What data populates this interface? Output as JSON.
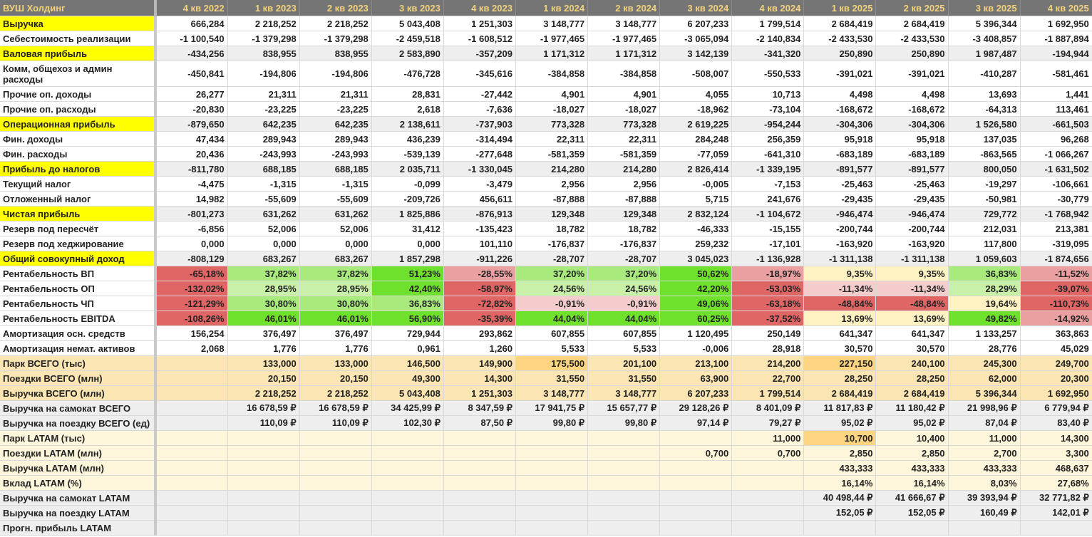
{
  "title": "ВУШ Холдинг",
  "columns": [
    "4 кв 2022",
    "1 кв 2023",
    "2 кв 2023",
    "3 кв 2023",
    "4 кв 2023",
    "1 кв 2024",
    "2 кв 2024",
    "3 кв 2024",
    "4 кв 2024",
    "1 кв 2025",
    "2 кв 2025",
    "3 кв 2025",
    "4 кв 2025"
  ],
  "colors": {
    "header_bg": "#757575",
    "header_text": "#f2d27a",
    "highlight": "#ffff00",
    "green_strong": "#6fe02c",
    "green_mid": "#a8ea7c",
    "green_light": "#c8f0a8",
    "red_strong": "#e06666",
    "red_mid": "#eaa0a0",
    "red_light": "#f4cccc",
    "yellow_light": "#fef2c2",
    "peach": "#fbe5b3",
    "cream": "#fef6db",
    "gray": "#eeeeee"
  },
  "rows": [
    {
      "label": "Выручка",
      "style": "white",
      "hl": true,
      "values": [
        "666,284",
        "2 218,252",
        "2 218,252",
        "5 043,408",
        "1 251,303",
        "3 148,777",
        "3 148,777",
        "6 207,233",
        "1 799,514",
        "2 684,419",
        "2 684,419",
        "5 396,344",
        "1 692,950"
      ]
    },
    {
      "label": "Себестоимость реализации",
      "style": "white",
      "values": [
        "-1 100,540",
        "-1 379,298",
        "-1 379,298",
        "-2 459,518",
        "-1 608,512",
        "-1 977,465",
        "-1 977,465",
        "-3 065,094",
        "-2 140,834",
        "-2 433,530",
        "-2 433,530",
        "-3 408,857",
        "-1 887,894"
      ]
    },
    {
      "label": "Валовая прибыль",
      "style": "gray",
      "hl": true,
      "values": [
        "-434,256",
        "838,955",
        "838,955",
        "2 583,890",
        "-357,209",
        "1 171,312",
        "1 171,312",
        "3 142,139",
        "-341,320",
        "250,890",
        "250,890",
        "1 987,487",
        "-194,944"
      ]
    },
    {
      "label": "Комм, общехоз и админ расходы",
      "style": "white",
      "tall": true,
      "values": [
        "-450,841",
        "-194,806",
        "-194,806",
        "-476,728",
        "-345,616",
        "-384,858",
        "-384,858",
        "-508,007",
        "-550,533",
        "-391,021",
        "-391,021",
        "-410,287",
        "-581,461"
      ]
    },
    {
      "label": "Прочие оп. доходы",
      "style": "white",
      "values": [
        "26,277",
        "21,311",
        "21,311",
        "28,831",
        "-27,442",
        "4,901",
        "4,901",
        "4,055",
        "10,713",
        "4,498",
        "4,498",
        "13,693",
        "1,441"
      ]
    },
    {
      "label": "Прочие оп. расходы",
      "style": "white",
      "values": [
        "-20,830",
        "-23,225",
        "-23,225",
        "2,618",
        "-7,636",
        "-18,027",
        "-18,027",
        "-18,962",
        "-73,104",
        "-168,672",
        "-168,672",
        "-64,313",
        "113,461"
      ]
    },
    {
      "label": "Операционная прибыль",
      "style": "gray",
      "hl": true,
      "values": [
        "-879,650",
        "642,235",
        "642,235",
        "2 138,611",
        "-737,903",
        "773,328",
        "773,328",
        "2 619,225",
        "-954,244",
        "-304,306",
        "-304,306",
        "1 526,580",
        "-661,503"
      ]
    },
    {
      "label": "Фин. доходы",
      "style": "white",
      "values": [
        "47,434",
        "289,943",
        "289,943",
        "436,239",
        "-314,494",
        "22,311",
        "22,311",
        "284,248",
        "256,359",
        "95,918",
        "95,918",
        "137,035",
        "96,268"
      ]
    },
    {
      "label": "Фин. расходы",
      "style": "white",
      "values": [
        "20,436",
        "-243,993",
        "-243,993",
        "-539,139",
        "-277,648",
        "-581,359",
        "-581,359",
        "-77,059",
        "-641,310",
        "-683,189",
        "-683,189",
        "-863,565",
        "-1 066,267"
      ]
    },
    {
      "label": "Прибыль до налогов",
      "style": "gray",
      "hl": true,
      "values": [
        "-811,780",
        "688,185",
        "688,185",
        "2 035,711",
        "-1 330,045",
        "214,280",
        "214,280",
        "2 826,414",
        "-1 339,195",
        "-891,577",
        "-891,577",
        "800,050",
        "-1 631,502"
      ]
    },
    {
      "label": "Текущий налог",
      "style": "white",
      "values": [
        "-4,475",
        "-1,315",
        "-1,315",
        "-0,099",
        "-3,479",
        "2,956",
        "2,956",
        "-0,005",
        "-7,153",
        "-25,463",
        "-25,463",
        "-19,297",
        "-106,661"
      ]
    },
    {
      "label": "Отложенный налог",
      "style": "white",
      "values": [
        "14,982",
        "-55,609",
        "-55,609",
        "-209,726",
        "456,611",
        "-87,888",
        "-87,888",
        "5,715",
        "241,676",
        "-29,435",
        "-29,435",
        "-50,981",
        "-30,779"
      ]
    },
    {
      "label": "Чистая прибыль",
      "style": "gray",
      "hl": true,
      "values": [
        "-801,273",
        "631,262",
        "631,262",
        "1 825,886",
        "-876,913",
        "129,348",
        "129,348",
        "2 832,124",
        "-1 104,672",
        "-946,474",
        "-946,474",
        "729,772",
        "-1 768,942"
      ]
    },
    {
      "label": "Резерв под пересчёт",
      "style": "white",
      "values": [
        "-6,856",
        "52,006",
        "52,006",
        "31,412",
        "-135,423",
        "18,782",
        "18,782",
        "-46,333",
        "-15,155",
        "-200,744",
        "-200,744",
        "212,031",
        "213,381"
      ]
    },
    {
      "label": "Резерв под хеджирование",
      "style": "white",
      "values": [
        "0,000",
        "0,000",
        "0,000",
        "0,000",
        "101,110",
        "-176,837",
        "-176,837",
        "259,232",
        "-17,101",
        "-163,920",
        "-163,920",
        "117,800",
        "-319,095"
      ]
    },
    {
      "label": "Общий совокупный доход",
      "style": "gray",
      "hl": true,
      "values": [
        "-808,129",
        "683,267",
        "683,267",
        "1 857,298",
        "-911,226",
        "-28,707",
        "-28,707",
        "3 045,023",
        "-1 136,928",
        "-1 311,138",
        "-1 311,138",
        "1 059,603",
        "-1 874,656"
      ]
    },
    {
      "label": "Рентабельность ВП",
      "style": "white",
      "values": [
        "-65,18%",
        "37,82%",
        "37,82%",
        "51,23%",
        "-28,55%",
        "37,20%",
        "37,20%",
        "50,62%",
        "-18,97%",
        "9,35%",
        "9,35%",
        "36,83%",
        "-11,52%"
      ],
      "colors": [
        "r-strong",
        "g-mid",
        "g-mid",
        "g-strong",
        "r-mid",
        "g-mid",
        "g-mid",
        "g-strong",
        "r-mid",
        "y-light",
        "y-light",
        "g-mid",
        "r-mid"
      ]
    },
    {
      "label": "Рентабельность ОП",
      "style": "white",
      "values": [
        "-132,02%",
        "28,95%",
        "28,95%",
        "42,40%",
        "-58,97%",
        "24,56%",
        "24,56%",
        "42,20%",
        "-53,03%",
        "-11,34%",
        "-11,34%",
        "28,29%",
        "-39,07%"
      ],
      "colors": [
        "r-strong",
        "g-light",
        "g-light",
        "g-strong",
        "r-strong",
        "g-light",
        "g-light",
        "g-strong",
        "r-strong",
        "r-light",
        "r-light",
        "g-light",
        "r-strong"
      ]
    },
    {
      "label": "Рентабельность ЧП",
      "style": "white",
      "values": [
        "-121,29%",
        "30,80%",
        "30,80%",
        "36,83%",
        "-72,82%",
        "-0,91%",
        "-0,91%",
        "49,06%",
        "-63,18%",
        "-48,84%",
        "-48,84%",
        "19,64%",
        "-110,73%"
      ],
      "colors": [
        "r-strong",
        "g-mid",
        "g-mid",
        "g-mid",
        "r-strong",
        "r-light",
        "r-light",
        "g-strong",
        "r-strong",
        "r-strong",
        "r-strong",
        "y-light",
        "r-strong"
      ]
    },
    {
      "label": "Рентабельность EBITDA",
      "style": "white",
      "values": [
        "-108,26%",
        "46,01%",
        "46,01%",
        "56,90%",
        "-35,39%",
        "44,04%",
        "44,04%",
        "60,25%",
        "-37,52%",
        "13,69%",
        "13,69%",
        "49,82%",
        "-14,92%"
      ],
      "colors": [
        "r-strong",
        "g-strong",
        "g-strong",
        "g-strong",
        "r-strong",
        "g-strong",
        "g-strong",
        "g-strong",
        "r-strong",
        "y-light",
        "y-light",
        "g-strong",
        "r-mid"
      ]
    },
    {
      "label": "Амортизация осн. средств",
      "style": "white",
      "values": [
        "156,254",
        "376,497",
        "376,497",
        "729,944",
        "293,862",
        "607,855",
        "607,855",
        "1 120,495",
        "250,149",
        "641,347",
        "641,347",
        "1 133,257",
        "363,863"
      ]
    },
    {
      "label": "Амортизация немат. активов",
      "style": "white",
      "values": [
        "2,068",
        "1,776",
        "1,776",
        "0,961",
        "1,260",
        "5,533",
        "5,533",
        "-0,006",
        "28,918",
        "30,570",
        "30,570",
        "28,776",
        "45,029"
      ]
    },
    {
      "label": "Парк ВСЕГО (тыс)",
      "style": "peach",
      "values": [
        "",
        "133,000",
        "133,000",
        "146,500",
        "149,900",
        "175,500",
        "201,100",
        "213,100",
        "214,200",
        "227,150",
        "240,100",
        "245,300",
        "249,700"
      ],
      "bright": [
        5,
        9
      ]
    },
    {
      "label": "Поездки ВСЕГО (млн)",
      "style": "peach",
      "values": [
        "",
        "20,150",
        "20,150",
        "49,300",
        "14,300",
        "31,550",
        "31,550",
        "63,900",
        "22,700",
        "28,250",
        "28,250",
        "62,000",
        "20,300"
      ]
    },
    {
      "label": "Выручка ВСЕГО (млн)",
      "style": "peach",
      "values": [
        "",
        "2 218,252",
        "2 218,252",
        "5 043,408",
        "1 251,303",
        "3 148,777",
        "3 148,777",
        "6 207,233",
        "1 799,514",
        "2 684,419",
        "2 684,419",
        "5 396,344",
        "1 692,950"
      ]
    },
    {
      "label": "Выручка на самокат ВСЕГО",
      "style": "gray",
      "values": [
        "",
        "16 678,59 ₽",
        "16 678,59 ₽",
        "34 425,99 ₽",
        "8 347,59 ₽",
        "17 941,75 ₽",
        "15 657,77 ₽",
        "29 128,26 ₽",
        "8 401,09 ₽",
        "11 817,83 ₽",
        "11 180,42 ₽",
        "21 998,96 ₽",
        "6 779,94 ₽"
      ]
    },
    {
      "label": "Выручка на поездку ВСЕГО (ед)",
      "style": "gray",
      "values": [
        "",
        "110,09 ₽",
        "110,09 ₽",
        "102,30 ₽",
        "87,50 ₽",
        "99,80 ₽",
        "99,80 ₽",
        "97,14 ₽",
        "79,27 ₽",
        "95,02 ₽",
        "95,02 ₽",
        "87,04 ₽",
        "83,40 ₽"
      ]
    },
    {
      "label": "Парк LATAM (тыс)",
      "style": "cream",
      "values": [
        "",
        "",
        "",
        "",
        "",
        "",
        "",
        "",
        "11,000",
        "10,700",
        "10,400",
        "11,000",
        "14,300"
      ],
      "bright": [
        9
      ]
    },
    {
      "label": "Поездки LATAM (млн)",
      "style": "cream",
      "values": [
        "",
        "",
        "",
        "",
        "",
        "",
        "",
        "0,700",
        "0,700",
        "2,850",
        "2,850",
        "2,700",
        "3,300"
      ]
    },
    {
      "label": "Выручка LATAM (млн)",
      "style": "cream",
      "values": [
        "",
        "",
        "",
        "",
        "",
        "",
        "",
        "",
        "",
        "433,333",
        "433,333",
        "433,333",
        "468,637"
      ]
    },
    {
      "label": "Вклад LATAM (%)",
      "style": "cream",
      "values": [
        "",
        "",
        "",
        "",
        "",
        "",
        "",
        "",
        "",
        "16,14%",
        "16,14%",
        "8,03%",
        "27,68%"
      ]
    },
    {
      "label": "Выручка на самокат LATAM",
      "style": "gray",
      "values": [
        "",
        "",
        "",
        "",
        "",
        "",
        "",
        "",
        "",
        "40 498,44 ₽",
        "41 666,67 ₽",
        "39 393,94 ₽",
        "32 771,82 ₽"
      ]
    },
    {
      "label": "Выручка на поездку LATAM",
      "style": "gray",
      "values": [
        "",
        "",
        "",
        "",
        "",
        "",
        "",
        "",
        "",
        "152,05 ₽",
        "152,05 ₽",
        "160,49 ₽",
        "142,01 ₽"
      ]
    },
    {
      "label": "Прогн. прибыль LATAM",
      "style": "gray",
      "values": [
        "",
        "",
        "",
        "",
        "",
        "",
        "",
        "",
        "",
        "",
        "",
        "",
        ""
      ]
    }
  ]
}
